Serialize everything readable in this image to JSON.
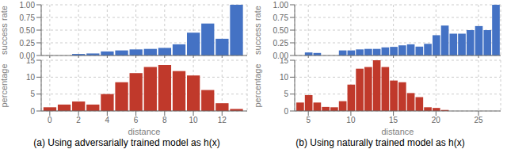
{
  "chart_data": [
    {
      "type": "bar",
      "ylabel": "success rate",
      "x": [
        0,
        1,
        2,
        3,
        4,
        5,
        6,
        7,
        8,
        9,
        10,
        11,
        12,
        13
      ],
      "values": [
        0.0,
        0.0,
        0.03,
        0.04,
        0.08,
        0.1,
        0.12,
        0.13,
        0.15,
        0.22,
        0.45,
        0.63,
        0.33,
        1.0
      ],
      "color": "#4472C4",
      "xlim": [
        -0.6,
        13.75
      ],
      "xticks": [
        0,
        2,
        4,
        6,
        8,
        10,
        12
      ],
      "ylim": [
        0,
        1.0
      ],
      "yticks": [
        {
          "value": 0.0,
          "label": "0.00"
        },
        0.25,
        {
          "value": 0.5,
          "label": "0.50"
        },
        0.75,
        {
          "value": 1.0,
          "label": "1.00"
        }
      ],
      "grid": true,
      "tick_labels": "y"
    },
    {
      "type": "bar",
      "xlabel": "distance",
      "ylabel": "percentage",
      "x": [
        0,
        1,
        2,
        3,
        4,
        5,
        6,
        7,
        8,
        9,
        10,
        11,
        12,
        13
      ],
      "values": [
        1.1,
        1.9,
        2.8,
        1.9,
        5.0,
        8.5,
        11.2,
        13.0,
        13.6,
        11.8,
        10.5,
        6.2,
        2.3,
        0.6
      ],
      "color": "#C0392B",
      "xlim": [
        -0.6,
        13.75
      ],
      "xticks": [
        0,
        2,
        4,
        6,
        8,
        10,
        12
      ],
      "ylim": [
        0,
        15
      ],
      "yticks": [
        0,
        5,
        10,
        15
      ],
      "grid": true,
      "annotations": [
        "(a) Using adversarially trained model as h(x)"
      ]
    },
    {
      "type": "bar",
      "ylabel": "success rate",
      "x": [
        4,
        5,
        6,
        7,
        8,
        9,
        10,
        11,
        12,
        13,
        14,
        15,
        16,
        17,
        18,
        19,
        20,
        21,
        22,
        23,
        24,
        25,
        26,
        27
      ],
      "values": [
        0.0,
        0.06,
        0.05,
        0.0,
        0.0,
        0.1,
        0.1,
        0.12,
        0.13,
        0.13,
        0.16,
        0.17,
        0.2,
        0.22,
        0.175,
        0.23,
        0.4,
        0.59,
        0.43,
        0.43,
        0.5,
        0.58,
        0.5,
        1.0
      ],
      "color": "#4472C4",
      "xlim": [
        3.4,
        27.6
      ],
      "xticks": [
        5,
        10,
        15,
        20,
        25
      ],
      "ylim": [
        0,
        1.0
      ],
      "yticks": [
        {
          "value": 0.0,
          "label": "0.00"
        },
        0.25,
        {
          "value": 0.5,
          "label": "0.50"
        },
        0.75,
        {
          "value": 1.0,
          "label": "1.00"
        }
      ],
      "grid": true,
      "tick_labels": "y"
    },
    {
      "type": "bar",
      "xlabel": "distance",
      "ylabel": "percentage",
      "x": [
        4,
        5,
        6,
        7,
        8,
        9,
        10,
        11,
        12,
        13,
        14,
        15,
        16,
        17,
        18,
        19,
        20,
        21,
        22,
        23,
        24,
        25,
        26,
        27
      ],
      "values": [
        2.5,
        4.7,
        2.5,
        1.2,
        1.1,
        2.9,
        7.8,
        12.5,
        13.0,
        15.0,
        13.0,
        9.0,
        8.5,
        5.3,
        4.1,
        1.1,
        0.9,
        0.3,
        0.0,
        0.0,
        0.0,
        0.0,
        0.0,
        0.0
      ],
      "color": "#C0392B",
      "xlim": [
        3.4,
        27.6
      ],
      "xticks": [
        5,
        10,
        15,
        20,
        25
      ],
      "ylim": [
        0,
        15
      ],
      "yticks": [
        0,
        5,
        10,
        15
      ],
      "grid": true,
      "annotations": [
        "(b) Using naturally trained model as h(x)"
      ]
    }
  ]
}
